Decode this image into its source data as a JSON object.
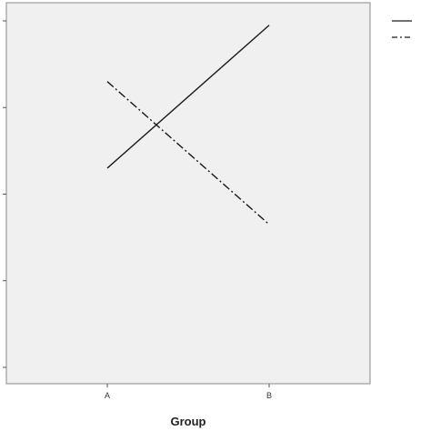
{
  "chart_data": {
    "type": "line",
    "categories": [
      "A",
      "B"
    ],
    "xlabel": "Group",
    "ylabel": "",
    "ylim": [
      0,
      4
    ],
    "yticks": [
      0,
      1,
      2,
      3,
      4
    ],
    "grid": false,
    "legend_position": "top-right",
    "series": [
      {
        "name": "",
        "values": [
          2.3,
          3.95
        ],
        "style": "solid",
        "color": "#1a1a1a"
      },
      {
        "name": "",
        "values": [
          3.3,
          1.65
        ],
        "style": "dash-dot",
        "color": "#1a1a1a"
      }
    ],
    "plot_background": "#f0f0f0"
  }
}
